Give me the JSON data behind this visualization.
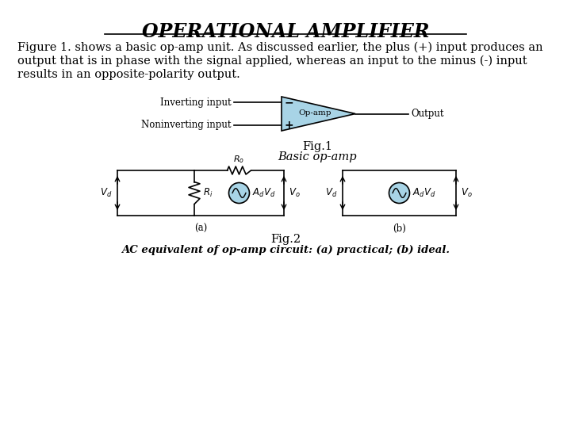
{
  "title": "OPERATIONAL AMPLIFIER",
  "fig1_label": "Fig.1",
  "fig1_caption": "Basic op-amp",
  "fig2_label": "Fig.2",
  "fig2_caption": "AC equivalent of op-amp circuit: (a) practical; (b) ideal.",
  "op_amp_color": "#a8d4e6",
  "background": "#ffffff",
  "inverting_label": "Inverting input",
  "noninverting_label": "Noninverting input",
  "output_label": "Output",
  "opamp_label": "Op-amp",
  "para_lines": [
    "Figure 1. shows a basic op-amp unit. As discussed earlier, the plus (+) input produces an",
    "output that is in phase with the signal applied, whereas an input to the minus (-) input",
    "results in an opposite-polarity output."
  ]
}
